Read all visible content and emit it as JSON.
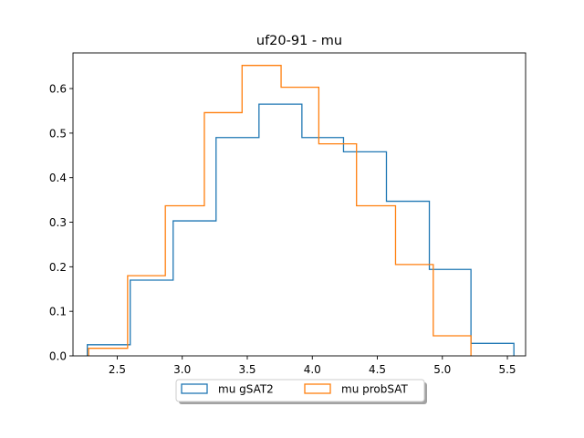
{
  "chart_data": {
    "type": "histogram",
    "title": "uf20-91 - mu",
    "xlabel": "",
    "ylabel": "",
    "xlim": [
      2.16,
      5.64
    ],
    "ylim": [
      0,
      0.68
    ],
    "xticks": [
      2.5,
      3.0,
      3.5,
      4.0,
      4.5,
      5.0,
      5.5
    ],
    "xtick_labels": [
      "2.5",
      "3.0",
      "3.5",
      "4.0",
      "4.5",
      "5.0",
      "5.5"
    ],
    "yticks": [
      0.0,
      0.1,
      0.2,
      0.3,
      0.4,
      0.5,
      0.6
    ],
    "ytick_labels": [
      "0.0",
      "0.1",
      "0.2",
      "0.3",
      "0.4",
      "0.5",
      "0.6"
    ],
    "grid": false,
    "legend": {
      "placement": "bottom-center-outside",
      "columns": 2
    },
    "series": [
      {
        "name": "mu gSAT2",
        "color": "#1f77b4",
        "bin_edges": [
          2.27,
          2.6,
          2.93,
          3.26,
          3.59,
          3.92,
          4.24,
          4.57,
          4.9,
          5.22,
          5.55
        ],
        "values": [
          0.025,
          0.17,
          0.303,
          0.49,
          0.565,
          0.49,
          0.458,
          0.347,
          0.194,
          0.028
        ]
      },
      {
        "name": "mu probSAT",
        "color": "#ff7f0e",
        "bin_edges": [
          2.28,
          2.58,
          2.87,
          3.17,
          3.46,
          3.76,
          4.05,
          4.34,
          4.64,
          4.93,
          5.22
        ],
        "values": [
          0.017,
          0.18,
          0.337,
          0.546,
          0.652,
          0.603,
          0.476,
          0.337,
          0.205,
          0.045
        ]
      }
    ]
  }
}
